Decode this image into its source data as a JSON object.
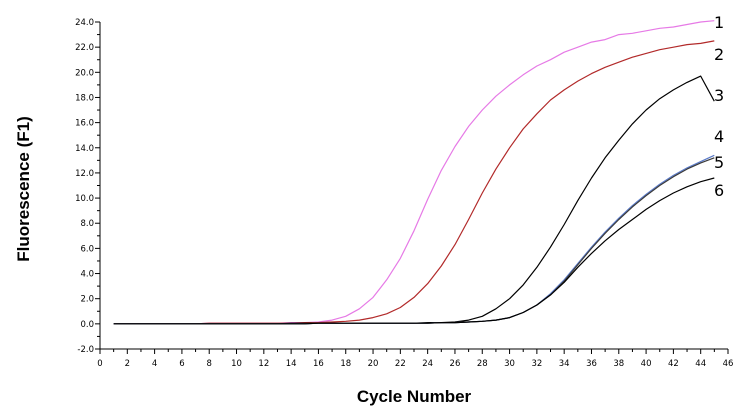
{
  "chart_data": {
    "type": "line",
    "title": "",
    "xlabel": "Cycle Number",
    "ylabel": "Fluorescence (F1)",
    "xlim": [
      0,
      46
    ],
    "ylim": [
      -2.0,
      24.0
    ],
    "x_ticks": [
      0,
      2,
      4,
      6,
      8,
      10,
      12,
      14,
      16,
      18,
      20,
      22,
      24,
      26,
      28,
      30,
      32,
      34,
      36,
      38,
      40,
      42,
      44,
      46
    ],
    "y_ticks": [
      "-2.0",
      "0.0",
      "2.0",
      "4.0",
      "6.0",
      "8.0",
      "10.0",
      "12.0",
      "14.0",
      "16.0",
      "18.0",
      "20.0",
      "22.0",
      "24.0"
    ],
    "x_ticks_minor_step": 1,
    "y_ticks_minor_step": 1,
    "grid": false,
    "x": [
      1,
      2,
      3,
      4,
      5,
      6,
      7,
      8,
      9,
      10,
      11,
      12,
      13,
      14,
      15,
      16,
      17,
      18,
      19,
      20,
      21,
      22,
      23,
      24,
      25,
      26,
      27,
      28,
      29,
      30,
      31,
      32,
      33,
      34,
      35,
      36,
      37,
      38,
      39,
      40,
      41,
      42,
      43,
      44,
      45
    ],
    "series": [
      {
        "name": "1",
        "color": "#e67ae6",
        "values": [
          0,
          0,
          0,
          0,
          0,
          0,
          0,
          0.05,
          0.05,
          0.05,
          0.05,
          0.05,
          0.05,
          0.1,
          0.1,
          0.15,
          0.3,
          0.6,
          1.2,
          2.1,
          3.5,
          5.2,
          7.4,
          9.9,
          12.2,
          14.1,
          15.7,
          17.0,
          18.1,
          19.0,
          19.8,
          20.5,
          21.0,
          21.6,
          22.0,
          22.4,
          22.6,
          23.0,
          23.1,
          23.3,
          23.5,
          23.6,
          23.8,
          24.0,
          24.1
        ]
      },
      {
        "name": "2",
        "color": "#b22a2a",
        "values": [
          0,
          0,
          0,
          0,
          0,
          0,
          0,
          0.05,
          0.05,
          0.05,
          0.05,
          0.05,
          0.05,
          0.05,
          0.1,
          0.1,
          0.15,
          0.2,
          0.3,
          0.5,
          0.8,
          1.3,
          2.1,
          3.2,
          4.6,
          6.3,
          8.3,
          10.4,
          12.3,
          14.0,
          15.5,
          16.7,
          17.8,
          18.6,
          19.3,
          19.9,
          20.4,
          20.8,
          21.2,
          21.5,
          21.8,
          22.0,
          22.2,
          22.3,
          22.5
        ]
      },
      {
        "name": "3",
        "color": "#000000",
        "values": [
          0,
          0,
          0,
          0,
          0,
          0,
          0,
          0,
          0,
          0,
          0,
          0,
          0,
          0.05,
          0.05,
          0.05,
          0.05,
          0.05,
          0.05,
          0.05,
          0.05,
          0.05,
          0.05,
          0.1,
          0.1,
          0.15,
          0.3,
          0.6,
          1.2,
          2.0,
          3.1,
          4.5,
          6.1,
          7.9,
          9.8,
          11.6,
          13.2,
          14.6,
          15.9,
          17.0,
          17.9,
          18.6,
          19.2,
          19.7,
          17.7
        ]
      },
      {
        "name": "4",
        "color": "#5a7ac8",
        "values": [
          0,
          0,
          0,
          0,
          0,
          0,
          0,
          0,
          0,
          0,
          0,
          0,
          0,
          0,
          0,
          0.05,
          0.05,
          0.05,
          0.05,
          0.05,
          0.05,
          0.05,
          0.05,
          0.05,
          0.1,
          0.1,
          0.15,
          0.2,
          0.3,
          0.5,
          0.9,
          1.5,
          2.4,
          3.5,
          4.8,
          6.1,
          7.3,
          8.4,
          9.4,
          10.3,
          11.1,
          11.8,
          12.4,
          12.9,
          13.4
        ]
      },
      {
        "name": "5",
        "color": "#3a3a3a",
        "values": [
          0,
          0,
          0,
          0,
          0,
          0,
          0,
          0,
          0,
          0,
          0,
          0,
          0,
          0,
          0,
          0.05,
          0.05,
          0.05,
          0.05,
          0.05,
          0.05,
          0.05,
          0.05,
          0.05,
          0.1,
          0.1,
          0.15,
          0.2,
          0.3,
          0.5,
          0.9,
          1.5,
          2.3,
          3.4,
          4.7,
          6.0,
          7.2,
          8.3,
          9.3,
          10.2,
          11.0,
          11.7,
          12.3,
          12.8,
          13.2
        ]
      },
      {
        "name": "6",
        "color": "#000000",
        "values": [
          0,
          0,
          0,
          0,
          0,
          0,
          0,
          0,
          0,
          0,
          0,
          0,
          0,
          0,
          0,
          0.05,
          0.05,
          0.05,
          0.05,
          0.05,
          0.05,
          0.05,
          0.05,
          0.05,
          0.1,
          0.1,
          0.15,
          0.2,
          0.3,
          0.5,
          0.9,
          1.5,
          2.3,
          3.3,
          4.5,
          5.6,
          6.6,
          7.5,
          8.3,
          9.1,
          9.8,
          10.4,
          10.9,
          11.3,
          11.6
        ]
      }
    ]
  }
}
